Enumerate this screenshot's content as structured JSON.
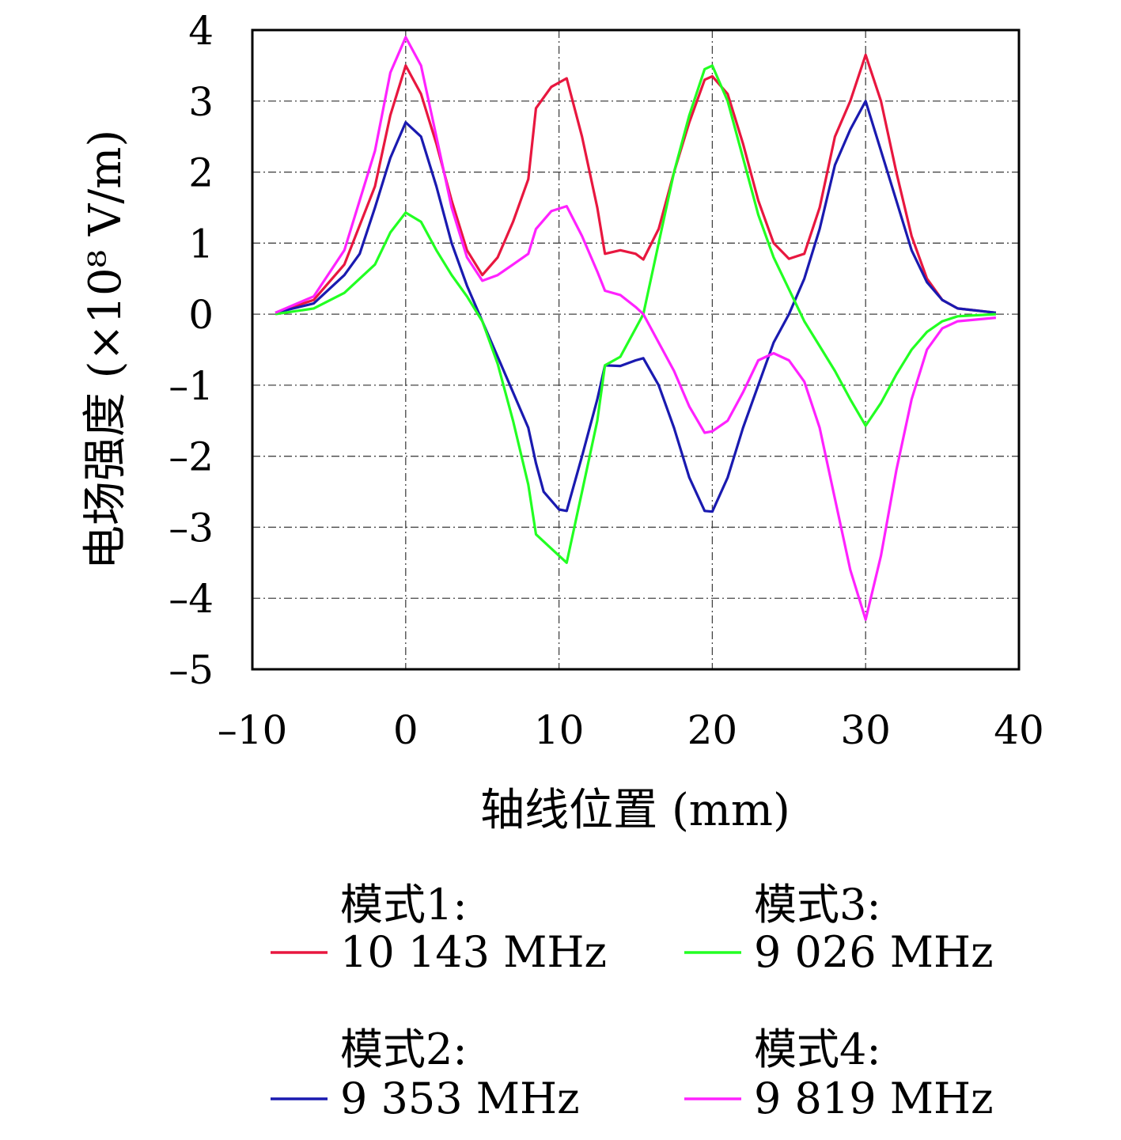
{
  "chart_data": {
    "type": "line",
    "xlabel": "轴线位置 (mm)",
    "ylabel": "电场强度 (×10⁸ V/m)",
    "xlim": [
      -10,
      40
    ],
    "ylim": [
      -5,
      4
    ],
    "xticks": [
      -10,
      0,
      10,
      20,
      30,
      40
    ],
    "yticks": [
      4,
      3,
      2,
      1,
      0,
      -1,
      -2,
      -3,
      -4,
      -5
    ],
    "xtick_labels": [
      "–10",
      "0",
      "10",
      "20",
      "30",
      "40"
    ],
    "ytick_labels": [
      "4",
      "3",
      "2",
      "1",
      "0",
      "–1",
      "–2",
      "–3",
      "–4",
      "–5"
    ],
    "grid": true,
    "legend_position": "bottom",
    "series": [
      {
        "name": "模式1:",
        "label": "10 143 MHz",
        "color": "#e8173f",
        "points": [
          [
            -8.5,
            0.02
          ],
          [
            -6,
            0.2
          ],
          [
            -4,
            0.7
          ],
          [
            -2,
            1.8
          ],
          [
            -1,
            2.8
          ],
          [
            0,
            3.5
          ],
          [
            1,
            3.1
          ],
          [
            2,
            2.4
          ],
          [
            3,
            1.6
          ],
          [
            4,
            0.9
          ],
          [
            5,
            0.55
          ],
          [
            6,
            0.8
          ],
          [
            7,
            1.3
          ],
          [
            8,
            1.9
          ],
          [
            8.5,
            2.9
          ],
          [
            9.5,
            3.2
          ],
          [
            10.5,
            3.32
          ],
          [
            11.5,
            2.5
          ],
          [
            12.5,
            1.5
          ],
          [
            13,
            0.85
          ],
          [
            14,
            0.9
          ],
          [
            15,
            0.85
          ],
          [
            15.5,
            0.77
          ],
          [
            16.5,
            1.2
          ],
          [
            17.5,
            2.0
          ],
          [
            18.5,
            2.7
          ],
          [
            19.5,
            3.3
          ],
          [
            20,
            3.35
          ],
          [
            21,
            3.1
          ],
          [
            22,
            2.4
          ],
          [
            23,
            1.6
          ],
          [
            24,
            1.0
          ],
          [
            25,
            0.78
          ],
          [
            26,
            0.85
          ],
          [
            27,
            1.5
          ],
          [
            28,
            2.5
          ],
          [
            29,
            3.0
          ],
          [
            30,
            3.65
          ],
          [
            31,
            3.0
          ],
          [
            32,
            2.0
          ],
          [
            33,
            1.1
          ],
          [
            34,
            0.5
          ],
          [
            35,
            0.2
          ],
          [
            36,
            0.08
          ],
          [
            38.5,
            0.02
          ]
        ]
      },
      {
        "name": "模式2:",
        "label": "9 353 MHz",
        "color": "#1a1ab0",
        "points": [
          [
            -8.5,
            0.02
          ],
          [
            -6,
            0.15
          ],
          [
            -4,
            0.55
          ],
          [
            -3,
            0.85
          ],
          [
            -2,
            1.5
          ],
          [
            -1,
            2.2
          ],
          [
            0,
            2.7
          ],
          [
            1,
            2.5
          ],
          [
            2,
            1.8
          ],
          [
            3,
            1.0
          ],
          [
            4,
            0.4
          ],
          [
            5,
            -0.1
          ],
          [
            6,
            -0.6
          ],
          [
            7,
            -1.1
          ],
          [
            8,
            -1.6
          ],
          [
            8.5,
            -2.1
          ],
          [
            9,
            -2.5
          ],
          [
            10,
            -2.75
          ],
          [
            10.5,
            -2.77
          ],
          [
            11.5,
            -2.0
          ],
          [
            12.5,
            -1.2
          ],
          [
            13,
            -0.72
          ],
          [
            14,
            -0.73
          ],
          [
            15,
            -0.65
          ],
          [
            15.5,
            -0.62
          ],
          [
            16.5,
            -1.0
          ],
          [
            17.5,
            -1.6
          ],
          [
            18.5,
            -2.3
          ],
          [
            19.5,
            -2.77
          ],
          [
            20,
            -2.78
          ],
          [
            21,
            -2.3
          ],
          [
            22,
            -1.6
          ],
          [
            23,
            -1.0
          ],
          [
            24,
            -0.4
          ],
          [
            25,
            0.0
          ],
          [
            26,
            0.5
          ],
          [
            27,
            1.2
          ],
          [
            28,
            2.1
          ],
          [
            29,
            2.6
          ],
          [
            30,
            3.0
          ],
          [
            31,
            2.3
          ],
          [
            32,
            1.6
          ],
          [
            33,
            0.9
          ],
          [
            34,
            0.45
          ],
          [
            35,
            0.2
          ],
          [
            36,
            0.08
          ],
          [
            38.5,
            0.02
          ]
        ]
      },
      {
        "name": "模式3:",
        "label": "9 026 MHz",
        "color": "#22ff22",
        "points": [
          [
            -8.5,
            0.0
          ],
          [
            -6,
            0.08
          ],
          [
            -4,
            0.3
          ],
          [
            -2,
            0.7
          ],
          [
            -1,
            1.15
          ],
          [
            0,
            1.43
          ],
          [
            1,
            1.3
          ],
          [
            2,
            0.9
          ],
          [
            3,
            0.55
          ],
          [
            4,
            0.25
          ],
          [
            5,
            -0.1
          ],
          [
            6,
            -0.7
          ],
          [
            7,
            -1.5
          ],
          [
            8,
            -2.4
          ],
          [
            8.5,
            -3.1
          ],
          [
            9.5,
            -3.3
          ],
          [
            10.5,
            -3.5
          ],
          [
            11.5,
            -2.5
          ],
          [
            12.5,
            -1.5
          ],
          [
            13,
            -0.72
          ],
          [
            14,
            -0.6
          ],
          [
            15,
            -0.2
          ],
          [
            15.5,
            0.0
          ],
          [
            16.5,
            1.0
          ],
          [
            17.5,
            2.0
          ],
          [
            18.5,
            2.8
          ],
          [
            19.5,
            3.45
          ],
          [
            20,
            3.5
          ],
          [
            21,
            3.0
          ],
          [
            22,
            2.2
          ],
          [
            23,
            1.4
          ],
          [
            24,
            0.8
          ],
          [
            25,
            0.35
          ],
          [
            26,
            -0.1
          ],
          [
            27,
            -0.45
          ],
          [
            28,
            -0.8
          ],
          [
            29,
            -1.2
          ],
          [
            30,
            -1.57
          ],
          [
            31,
            -1.25
          ],
          [
            32,
            -0.85
          ],
          [
            33,
            -0.5
          ],
          [
            34,
            -0.25
          ],
          [
            35,
            -0.1
          ],
          [
            36,
            -0.03
          ],
          [
            38.5,
            0.0
          ]
        ]
      },
      {
        "name": "模式4:",
        "label": "9 819 MHz",
        "color": "#ff22ff",
        "points": [
          [
            -8.5,
            0.02
          ],
          [
            -6,
            0.25
          ],
          [
            -4,
            0.9
          ],
          [
            -2,
            2.3
          ],
          [
            -1,
            3.4
          ],
          [
            0,
            3.9
          ],
          [
            1,
            3.5
          ],
          [
            2,
            2.5
          ],
          [
            3,
            1.5
          ],
          [
            4,
            0.8
          ],
          [
            5,
            0.47
          ],
          [
            6,
            0.55
          ],
          [
            7,
            0.7
          ],
          [
            8,
            0.85
          ],
          [
            8.5,
            1.2
          ],
          [
            9.5,
            1.45
          ],
          [
            10.5,
            1.52
          ],
          [
            11.5,
            1.1
          ],
          [
            12.5,
            0.6
          ],
          [
            13,
            0.33
          ],
          [
            14,
            0.27
          ],
          [
            15,
            0.1
          ],
          [
            15.5,
            0.0
          ],
          [
            16.5,
            -0.4
          ],
          [
            17.5,
            -0.8
          ],
          [
            18.5,
            -1.3
          ],
          [
            19.5,
            -1.67
          ],
          [
            20,
            -1.65
          ],
          [
            21,
            -1.5
          ],
          [
            22,
            -1.1
          ],
          [
            23,
            -0.65
          ],
          [
            24,
            -0.55
          ],
          [
            25,
            -0.65
          ],
          [
            26,
            -0.95
          ],
          [
            27,
            -1.6
          ],
          [
            28,
            -2.6
          ],
          [
            29,
            -3.6
          ],
          [
            30,
            -4.3
          ],
          [
            31,
            -3.4
          ],
          [
            32,
            -2.2
          ],
          [
            33,
            -1.2
          ],
          [
            34,
            -0.5
          ],
          [
            35,
            -0.2
          ],
          [
            36,
            -0.1
          ],
          [
            38.5,
            -0.05
          ]
        ]
      }
    ]
  }
}
